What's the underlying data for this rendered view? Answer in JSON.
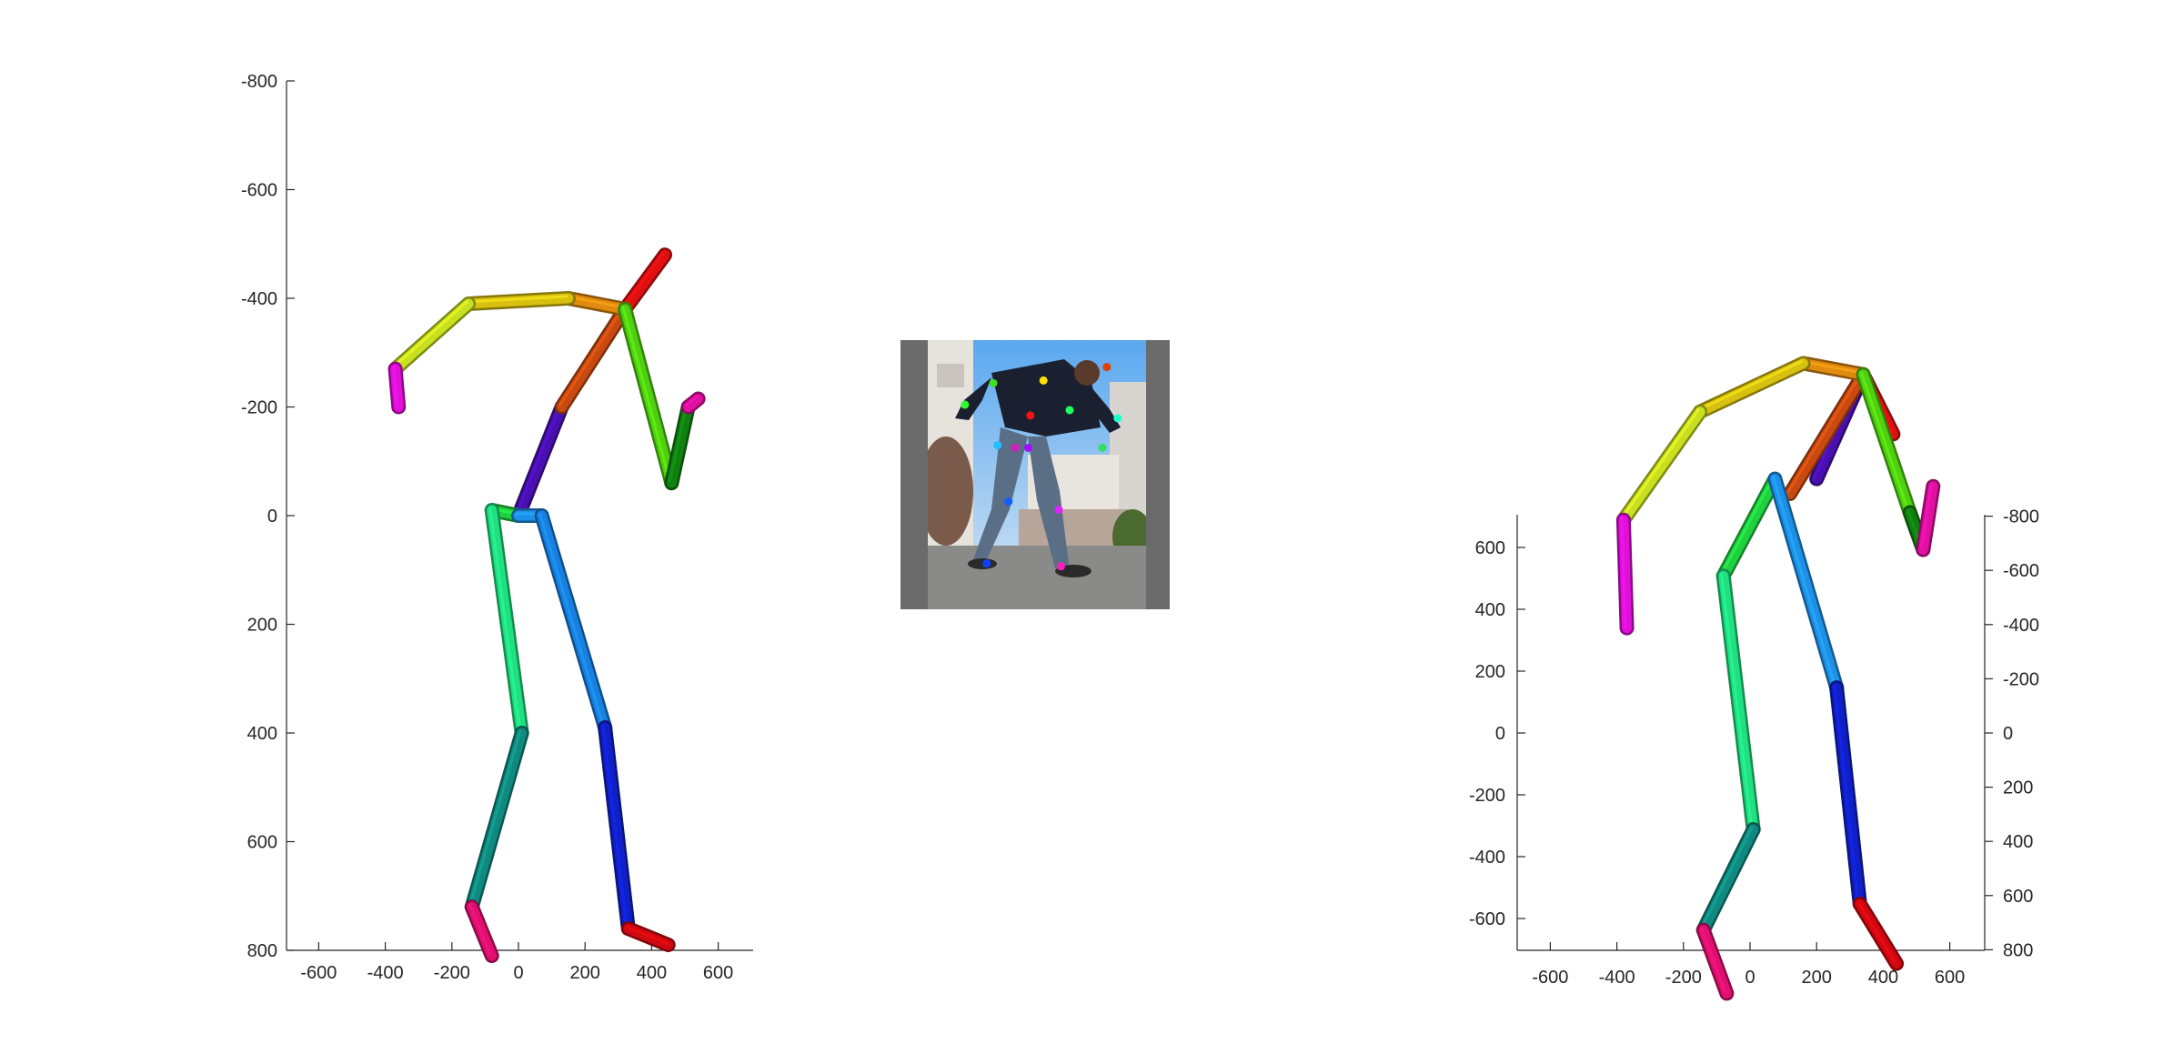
{
  "chart_data": [
    {
      "type": "skeleton-3d-front",
      "x_ticks": [
        -600,
        -400,
        -200,
        0,
        200,
        400,
        600
      ],
      "y_ticks": [
        -800,
        -600,
        -400,
        -200,
        0,
        200,
        400,
        600,
        800
      ],
      "xlim": [
        -700,
        700
      ],
      "ylim": [
        -800,
        800
      ],
      "y_reversed": true,
      "bones": [
        {
          "name": "torso-upper",
          "color": "#4a0fb0",
          "from": [
            130,
            -200
          ],
          "to": [
            0,
            0
          ]
        },
        {
          "name": "neck",
          "color": "#c84a10",
          "from": [
            320,
            -380
          ],
          "to": [
            130,
            -200
          ]
        },
        {
          "name": "head",
          "color": "#e01010",
          "from": [
            320,
            -380
          ],
          "to": [
            440,
            -480
          ]
        },
        {
          "name": "left-shoulder",
          "color": "#e08a10",
          "from": [
            320,
            -380
          ],
          "to": [
            150,
            -400
          ]
        },
        {
          "name": "left-upper-arm",
          "color": "#d8c010",
          "from": [
            150,
            -400
          ],
          "to": [
            -150,
            -390
          ]
        },
        {
          "name": "left-forearm",
          "color": "#c8e020",
          "from": [
            -150,
            -390
          ],
          "to": [
            -370,
            -270
          ]
        },
        {
          "name": "left-hand",
          "color": "#e010d8",
          "from": [
            -370,
            -270
          ],
          "to": [
            -360,
            -200
          ]
        },
        {
          "name": "right-upper-arm",
          "color": "#50d010",
          "from": [
            320,
            -380
          ],
          "to": [
            460,
            -60
          ]
        },
        {
          "name": "right-forearm",
          "color": "#108010",
          "from": [
            460,
            -60
          ],
          "to": [
            510,
            -200
          ]
        },
        {
          "name": "right-hand",
          "color": "#e010a0",
          "from": [
            510,
            -200
          ],
          "to": [
            540,
            -215
          ]
        },
        {
          "name": "hip-left",
          "color": "#20d040",
          "from": [
            0,
            0
          ],
          "to": [
            -80,
            -10
          ]
        },
        {
          "name": "left-thigh",
          "color": "#20e080",
          "from": [
            -80,
            -10
          ],
          "to": [
            10,
            400
          ]
        },
        {
          "name": "left-shin",
          "color": "#108a80",
          "from": [
            10,
            400
          ],
          "to": [
            -140,
            720
          ]
        },
        {
          "name": "left-foot",
          "color": "#e01070",
          "from": [
            -140,
            720
          ],
          "to": [
            -80,
            810
          ]
        },
        {
          "name": "hip-right",
          "color": "#1e90e8",
          "from": [
            0,
            0
          ],
          "to": [
            70,
            0
          ]
        },
        {
          "name": "right-thigh",
          "color": "#1880e0",
          "from": [
            70,
            0
          ],
          "to": [
            260,
            390
          ]
        },
        {
          "name": "right-shin",
          "color": "#1020c8",
          "from": [
            260,
            390
          ],
          "to": [
            330,
            760
          ]
        },
        {
          "name": "right-foot",
          "color": "#d00810",
          "from": [
            330,
            760
          ],
          "to": [
            450,
            790
          ]
        }
      ]
    },
    {
      "type": "skeleton-3d-perspective",
      "x_ticks": [
        -600,
        -400,
        -200,
        0,
        200,
        400,
        600
      ],
      "y_ticks_left": [
        600,
        400,
        200,
        0,
        -200,
        -400,
        -600
      ],
      "y_ticks_right": [
        -800,
        -600,
        -400,
        -200,
        0,
        200,
        400,
        600,
        800
      ],
      "xlim": [
        -700,
        700
      ],
      "ylim_left": [
        -700,
        700
      ],
      "bones": [
        {
          "name": "torso-upper",
          "color": "#4a0fb0",
          "from": [
            340,
            990
          ],
          "to": [
            200,
            1130
          ]
        },
        {
          "name": "neck",
          "color": "#c84a10",
          "from": [
            340,
            990
          ],
          "to": [
            120,
            1150
          ]
        },
        {
          "name": "head",
          "color": "#e01010",
          "from": [
            340,
            990
          ],
          "to": [
            430,
            1070
          ]
        },
        {
          "name": "left-shoulder",
          "color": "#e08a10",
          "from": [
            340,
            990
          ],
          "to": [
            160,
            975
          ]
        },
        {
          "name": "left-upper-arm",
          "color": "#d8c010",
          "from": [
            160,
            975
          ],
          "to": [
            -150,
            1040
          ]
        },
        {
          "name": "left-forearm",
          "color": "#c8e020",
          "from": [
            -150,
            1040
          ],
          "to": [
            -380,
            1185
          ]
        },
        {
          "name": "left-hand",
          "color": "#e010d8",
          "from": [
            -380,
            1185
          ],
          "to": [
            -370,
            1330
          ]
        },
        {
          "name": "right-upper-arm",
          "color": "#50d010",
          "from": [
            340,
            990
          ],
          "to": [
            480,
            1175
          ]
        },
        {
          "name": "right-forearm",
          "color": "#108010",
          "from": [
            480,
            1175
          ],
          "to": [
            520,
            1225
          ]
        },
        {
          "name": "right-hand",
          "color": "#e010a0",
          "from": [
            520,
            1225
          ],
          "to": [
            550,
            1140
          ]
        },
        {
          "name": "hip-left",
          "color": "#20d040",
          "from": [
            75,
            1130
          ],
          "to": [
            -80,
            1260
          ]
        },
        {
          "name": "left-thigh",
          "color": "#20e080",
          "from": [
            -80,
            1260
          ],
          "to": [
            10,
            1600
          ]
        },
        {
          "name": "left-shin",
          "color": "#108a80",
          "from": [
            10,
            1600
          ],
          "to": [
            -140,
            1735
          ]
        },
        {
          "name": "left-foot",
          "color": "#e01070",
          "from": [
            -140,
            1735
          ],
          "to": [
            -70,
            1820
          ]
        },
        {
          "name": "hip-right",
          "color": "#1e90e8",
          "from": [
            75,
            1130
          ],
          "to": [
            260,
            1410
          ]
        },
        {
          "name": "right-thigh",
          "color": "#1880e0",
          "from": [
            260,
            1410
          ],
          "to": [
            260,
            1410
          ]
        },
        {
          "name": "right-shin",
          "color": "#1020c8",
          "from": [
            260,
            1410
          ],
          "to": [
            330,
            1700
          ]
        },
        {
          "name": "right-foot",
          "color": "#d00810",
          "from": [
            330,
            1700
          ],
          "to": [
            440,
            1780
          ]
        }
      ]
    }
  ],
  "photo": {
    "keypoints": [
      {
        "name": "head-top",
        "color": "#e04000",
        "u": 0.82,
        "v": 0.1
      },
      {
        "name": "neck",
        "color": "#ffe000",
        "u": 0.53,
        "v": 0.15
      },
      {
        "name": "left-shoulder",
        "color": "#40e020",
        "u": 0.3,
        "v": 0.16
      },
      {
        "name": "left-elbow",
        "color": "#30ff30",
        "u": 0.17,
        "v": 0.24
      },
      {
        "name": "chest",
        "color": "#ff1010",
        "u": 0.47,
        "v": 0.28
      },
      {
        "name": "right-shoulder",
        "color": "#20ff60",
        "u": 0.65,
        "v": 0.26
      },
      {
        "name": "right-wrist",
        "color": "#20ffd0",
        "u": 0.87,
        "v": 0.29
      },
      {
        "name": "right-hand",
        "color": "#30e060",
        "u": 0.8,
        "v": 0.4
      },
      {
        "name": "left-hip",
        "color": "#20c0ff",
        "u": 0.32,
        "v": 0.39
      },
      {
        "name": "pelvis",
        "color": "#d020c0",
        "u": 0.4,
        "v": 0.4
      },
      {
        "name": "right-hip",
        "color": "#a010ff",
        "u": 0.46,
        "v": 0.4
      },
      {
        "name": "left-knee",
        "color": "#1060ff",
        "u": 0.37,
        "v": 0.6
      },
      {
        "name": "right-knee",
        "color": "#e020ff",
        "u": 0.6,
        "v": 0.63
      },
      {
        "name": "left-ankle",
        "color": "#1040ff",
        "u": 0.27,
        "v": 0.83
      },
      {
        "name": "right-ankle",
        "color": "#ff20c0",
        "u": 0.61,
        "v": 0.84
      }
    ]
  }
}
